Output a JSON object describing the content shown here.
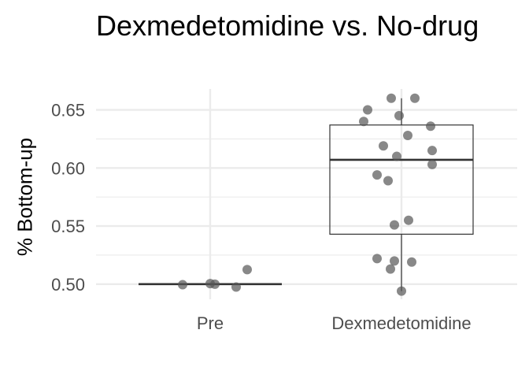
{
  "chart_data": {
    "type": "box",
    "title": "Dexmedetomidine vs. No-drug",
    "xlabel": "",
    "ylabel": "% Bottom-up",
    "categories": [
      "Pre",
      "Dexmedetomidine"
    ],
    "ylim": [
      0.487,
      0.668
    ],
    "yticks": [
      0.5,
      0.55,
      0.6,
      0.65
    ],
    "ytick_labels": [
      "0.50",
      "0.55",
      "0.60",
      "0.65"
    ],
    "grid": true,
    "boxes": [
      {
        "category": "Pre",
        "min": 0.5,
        "q1": 0.5,
        "median": 0.5,
        "q3": 0.5,
        "max": 0.5
      },
      {
        "category": "Dexmedetomidine",
        "min": 0.494,
        "q1": 0.543,
        "median": 0.607,
        "q3": 0.637,
        "max": 0.66
      }
    ],
    "points": [
      {
        "category": "Pre",
        "jitter": 0.47,
        "y": 0.5125
      },
      {
        "category": "Pre",
        "jitter": -0.35,
        "y": 0.4995
      },
      {
        "category": "Pre",
        "jitter": 0.0,
        "y": 0.5005
      },
      {
        "category": "Pre",
        "jitter": 0.06,
        "y": 0.5
      },
      {
        "category": "Pre",
        "jitter": 0.33,
        "y": 0.4975
      },
      {
        "category": "Dexmedetomidine",
        "jitter": -0.43,
        "y": 0.65
      },
      {
        "category": "Dexmedetomidine",
        "jitter": -0.48,
        "y": 0.64
      },
      {
        "category": "Dexmedetomidine",
        "jitter": -0.13,
        "y": 0.66
      },
      {
        "category": "Dexmedetomidine",
        "jitter": 0.17,
        "y": 0.66
      },
      {
        "category": "Dexmedetomidine",
        "jitter": -0.03,
        "y": 0.645
      },
      {
        "category": "Dexmedetomidine",
        "jitter": 0.37,
        "y": 0.636
      },
      {
        "category": "Dexmedetomidine",
        "jitter": 0.08,
        "y": 0.628
      },
      {
        "category": "Dexmedetomidine",
        "jitter": -0.23,
        "y": 0.619
      },
      {
        "category": "Dexmedetomidine",
        "jitter": 0.39,
        "y": 0.615
      },
      {
        "category": "Dexmedetomidine",
        "jitter": -0.06,
        "y": 0.61
      },
      {
        "category": "Dexmedetomidine",
        "jitter": 0.39,
        "y": 0.603
      },
      {
        "category": "Dexmedetomidine",
        "jitter": -0.31,
        "y": 0.594
      },
      {
        "category": "Dexmedetomidine",
        "jitter": -0.17,
        "y": 0.589
      },
      {
        "category": "Dexmedetomidine",
        "jitter": 0.09,
        "y": 0.555
      },
      {
        "category": "Dexmedetomidine",
        "jitter": -0.09,
        "y": 0.551
      },
      {
        "category": "Dexmedetomidine",
        "jitter": -0.31,
        "y": 0.522
      },
      {
        "category": "Dexmedetomidine",
        "jitter": -0.09,
        "y": 0.52
      },
      {
        "category": "Dexmedetomidine",
        "jitter": 0.13,
        "y": 0.519
      },
      {
        "category": "Dexmedetomidine",
        "jitter": -0.14,
        "y": 0.513
      },
      {
        "category": "Dexmedetomidine",
        "jitter": 0.0,
        "y": 0.494
      }
    ],
    "colors": {
      "point": "#555555",
      "box": "#333333",
      "grid": "#ebebeb",
      "tick": "#4d4d4d"
    }
  }
}
